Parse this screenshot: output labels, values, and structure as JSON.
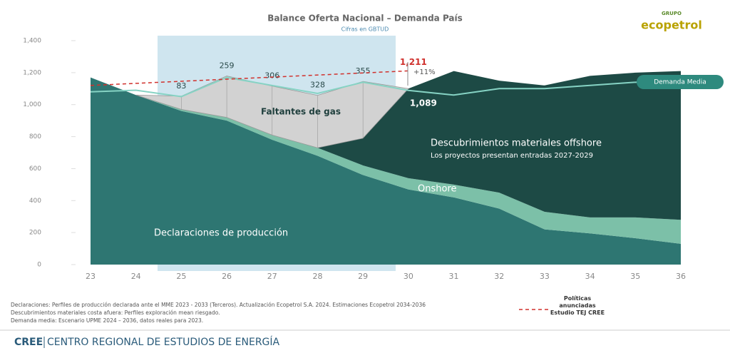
{
  "chart_data": {
    "type": "area",
    "title": "Balance Oferta Nacional – Demanda País",
    "subtitle": "Cifras en GBTUD",
    "categories": [
      "23",
      "24",
      "25",
      "26",
      "27",
      "28",
      "29",
      "30",
      "31",
      "32",
      "33",
      "34",
      "35",
      "36"
    ],
    "ylim": [
      0,
      1400
    ],
    "yticks": [
      0,
      200,
      400,
      600,
      800,
      {
        "value": 1000,
        "label": "1,000"
      },
      {
        "value": 1200,
        "label": "1,200"
      },
      {
        "value": 1400,
        "label": "1,400"
      }
    ],
    "series": [
      {
        "name": "Declaraciones de producción",
        "color": "#2e7672",
        "values": [
          1170,
          1060,
          960,
          900,
          780,
          680,
          560,
          470,
          420,
          350,
          220,
          195,
          165,
          130
        ]
      },
      {
        "name": "Onshore",
        "color": "#7cc0a8",
        "values": [
          0,
          0,
          10,
          20,
          30,
          50,
          60,
          70,
          80,
          100,
          110,
          100,
          130,
          150
        ]
      },
      {
        "name": "Descubrimientos materiales offshore",
        "color": "#1d4a45",
        "values": [
          0,
          0,
          0,
          0,
          0,
          0,
          170,
          560,
          710,
          700,
          790,
          885,
          905,
          930
        ]
      },
      {
        "name": "Faltantes de gas",
        "color": "#d2d2d2",
        "values": [
          null,
          0,
          83,
          259,
          306,
          328,
          355,
          0,
          null,
          null,
          null,
          null,
          null,
          null
        ],
        "value_labels": [
          null,
          null,
          "83",
          "259",
          "306",
          "328",
          "355",
          null,
          null,
          null,
          null,
          null,
          null,
          null
        ]
      }
    ],
    "demand": {
      "name": "Demanda Media",
      "color": "#86d3c4",
      "values": [
        1080,
        1090,
        1050,
        1170,
        1120,
        1070,
        1140,
        1089,
        1060,
        1100,
        1100,
        1120,
        1140,
        1150
      ],
      "value_labels": [
        null,
        null,
        null,
        null,
        null,
        null,
        null,
        "1,089",
        null,
        null,
        null,
        null,
        null,
        null
      ]
    },
    "policy": {
      "name": "Políticas anunciadas Estudio TEJ CREE",
      "color": "#d0312d",
      "values": [
        1120,
        null,
        null,
        null,
        null,
        null,
        null,
        1211,
        null,
        null,
        null,
        null,
        null,
        null
      ],
      "value_labels": [
        null,
        null,
        null,
        null,
        null,
        null,
        null,
        "1,211",
        null,
        null,
        null,
        null,
        null,
        null
      ],
      "change": "+11%"
    },
    "offshore_note": "Los proyectos presentan entradas 2027-2029",
    "notes": [
      "Declaraciones: Perfiles de producción declarada ante el MME 2023 - 2033 (Terceros).  Actualización Ecopetrol S.A. 2024. Estimaciones Ecopetrol 2034-2036",
      "Descubrimientos materiales costa afuera: Perfiles exploración mean riesgado.",
      "Demanda media: Escenario UPME 2024 – 2036, datos reales para 2023."
    ]
  },
  "logo": {
    "top": "GRUPO",
    "name": "ecopetrol"
  },
  "footer": {
    "brand": "CREE",
    "text": "CENTRO REGIONAL DE ESTUDIOS DE ENERGÍA"
  }
}
